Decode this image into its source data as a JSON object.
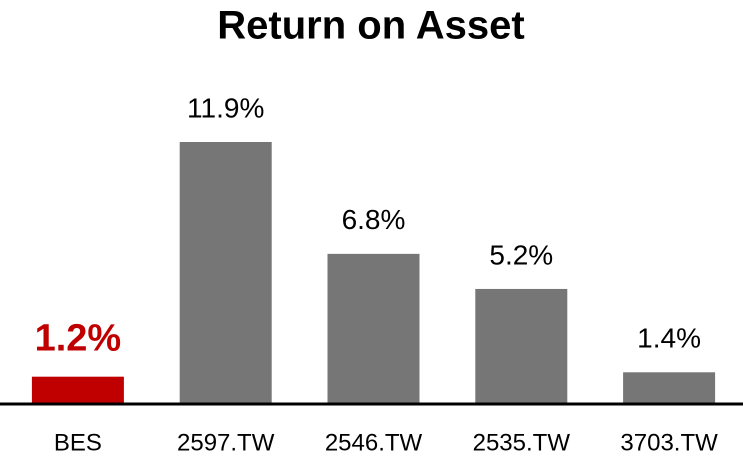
{
  "chart_data": {
    "type": "bar",
    "title": "Return on Asset",
    "categories": [
      "BES",
      "2597.TW",
      "2546.TW",
      "2535.TW",
      "3703.TW"
    ],
    "values": [
      1.2,
      11.9,
      6.8,
      5.2,
      1.4
    ],
    "value_labels": [
      "1.2%",
      "11.9%",
      "6.8%",
      "5.2%",
      "1.4%"
    ],
    "colors": [
      "#c00000",
      "#767676",
      "#767676",
      "#767676",
      "#767676"
    ],
    "value_label_colors": [
      "#c00000",
      "#000000",
      "#000000",
      "#000000",
      "#000000"
    ]
  }
}
